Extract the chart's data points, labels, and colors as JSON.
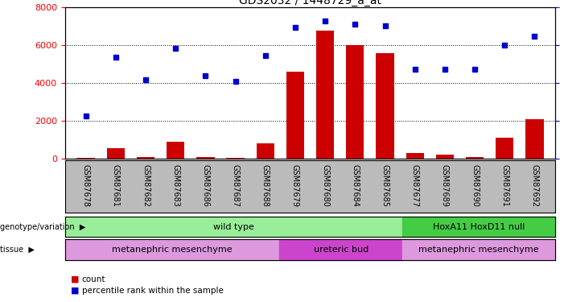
{
  "title": "GDS2032 / 1448729_a_at",
  "samples": [
    "GSM87678",
    "GSM87681",
    "GSM87682",
    "GSM87683",
    "GSM87686",
    "GSM87687",
    "GSM87688",
    "GSM87679",
    "GSM87680",
    "GSM87684",
    "GSM87685",
    "GSM87677",
    "GSM87689",
    "GSM87690",
    "GSM87691",
    "GSM87692"
  ],
  "counts": [
    50,
    550,
    100,
    900,
    100,
    50,
    800,
    4600,
    6800,
    6000,
    5600,
    300,
    200,
    100,
    1100,
    2100
  ],
  "percentiles": [
    28,
    67,
    52,
    73,
    55,
    51,
    68,
    87,
    91,
    89,
    88,
    59,
    59,
    59,
    75,
    81
  ],
  "ylim_left": [
    0,
    8000
  ],
  "ylim_right": [
    0,
    100
  ],
  "yticks_left": [
    0,
    2000,
    4000,
    6000,
    8000
  ],
  "yticks_right": [
    0,
    25,
    50,
    75,
    100
  ],
  "bar_color": "#cc0000",
  "dot_color": "#0000cc",
  "background_color": "#ffffff",
  "label_bg_color": "#bbbbbb",
  "genotype_groups": [
    {
      "label": "wild type",
      "start": 0,
      "end": 10,
      "color": "#99ee99"
    },
    {
      "label": "HoxA11 HoxD11 null",
      "start": 11,
      "end": 15,
      "color": "#44cc44"
    }
  ],
  "tissue_groups": [
    {
      "label": "metanephric mesenchyme",
      "start": 0,
      "end": 6,
      "color": "#dd99dd"
    },
    {
      "label": "ureteric bud",
      "start": 7,
      "end": 10,
      "color": "#cc44cc"
    },
    {
      "label": "metanephric mesenchyme",
      "start": 11,
      "end": 15,
      "color": "#dd99dd"
    }
  ],
  "legend_count_color": "#cc0000",
  "legend_pct_color": "#0000cc",
  "label_fontsize": 7.0,
  "title_fontsize": 10,
  "row_fontsize": 8,
  "legend_fontsize": 7.5
}
